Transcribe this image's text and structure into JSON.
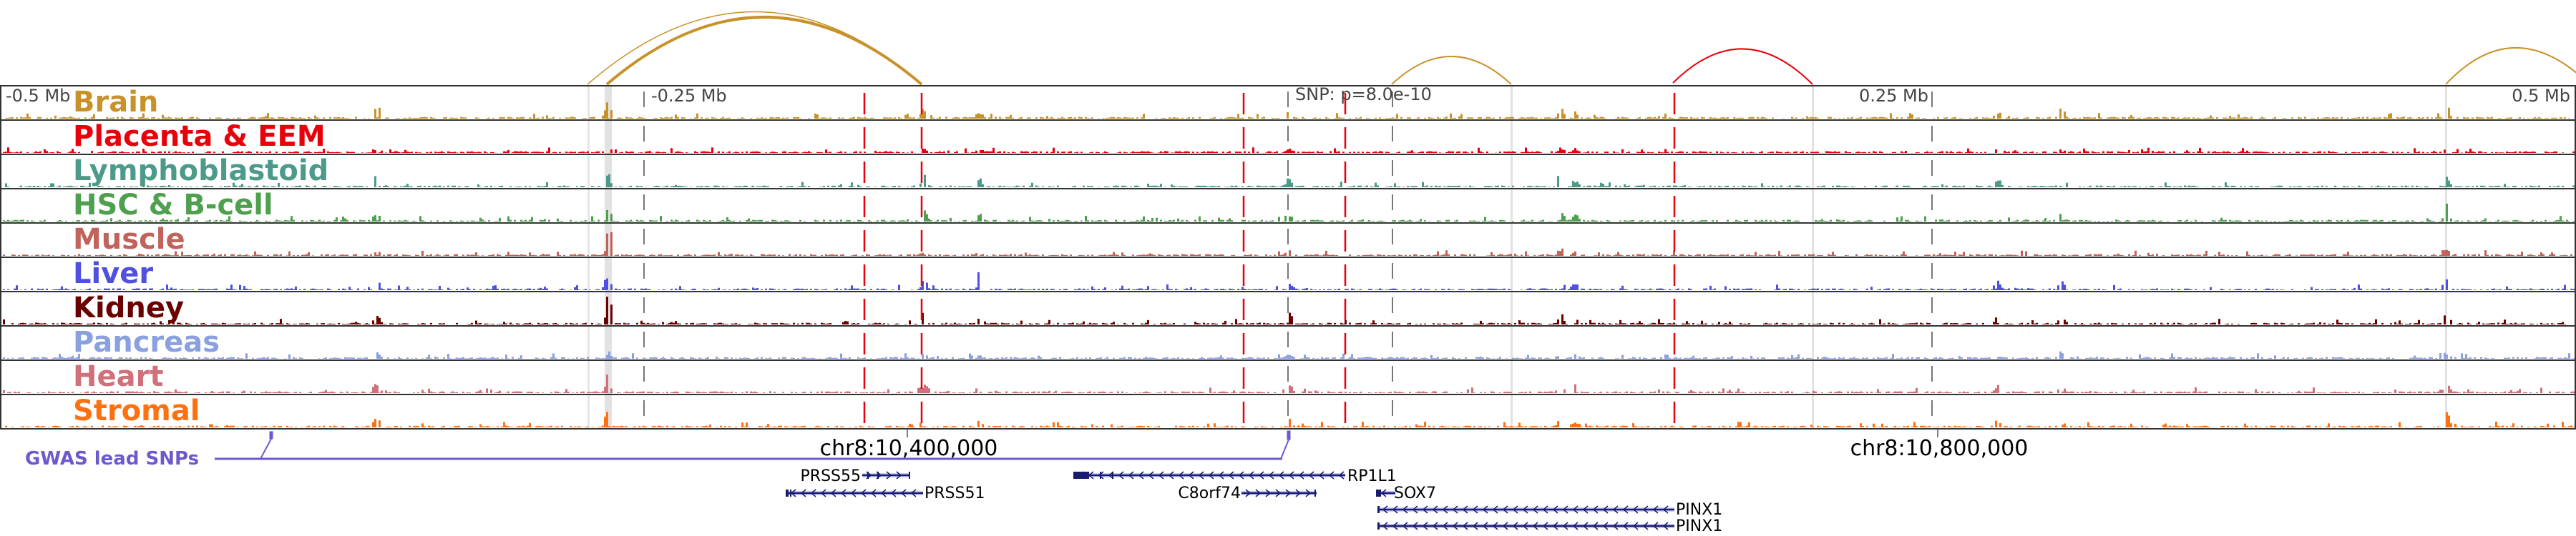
{
  "axis": {
    "left_label": "-0.5 Mb",
    "neg_quarter_label": "-0.25 Mb",
    "snp_label": "SNP: p=8.0e-10",
    "pos_quarter_label": "0.25 Mb",
    "right_label": "0.5 Mb"
  },
  "tracks": [
    {
      "name": "Brain",
      "color": "#c8922a"
    },
    {
      "name": "Placenta & EEM",
      "color": "#e8000b"
    },
    {
      "name": "Lymphoblastoid",
      "color": "#4c9a8a"
    },
    {
      "name": "HSC & B-cell",
      "color": "#4ea04e"
    },
    {
      "name": "Muscle",
      "color": "#c0635a"
    },
    {
      "name": "Liver",
      "color": "#5050e0"
    },
    {
      "name": "Kidney",
      "color": "#6b0000"
    },
    {
      "name": "Pancreas",
      "color": "#8aa0e0"
    },
    {
      "name": "Heart",
      "color": "#d0707a"
    },
    {
      "name": "Stromal",
      "color": "#ff7010"
    }
  ],
  "coordinates": {
    "left_tick": "chr8:10,400,000",
    "right_tick": "chr8:10,800,000"
  },
  "gwas": {
    "label": "GWAS lead SNPs",
    "color": "#6a5acd"
  },
  "genes": [
    {
      "name": "PRSS55",
      "strand": "+"
    },
    {
      "name": "PRSS51",
      "strand": "-"
    },
    {
      "name": "RP1L1",
      "strand": "-"
    },
    {
      "name": "C8orf74",
      "strand": "+"
    },
    {
      "name": "SOX7",
      "strand": "-"
    },
    {
      "name": "PINX1",
      "strand": "-"
    },
    {
      "name": "PINX1",
      "strand": "-"
    }
  ],
  "colors": {
    "gene": "#1a1a6e",
    "red_marker": "#e8000b",
    "gray_marker": "#777777",
    "highlight": "#e2e2e2"
  }
}
